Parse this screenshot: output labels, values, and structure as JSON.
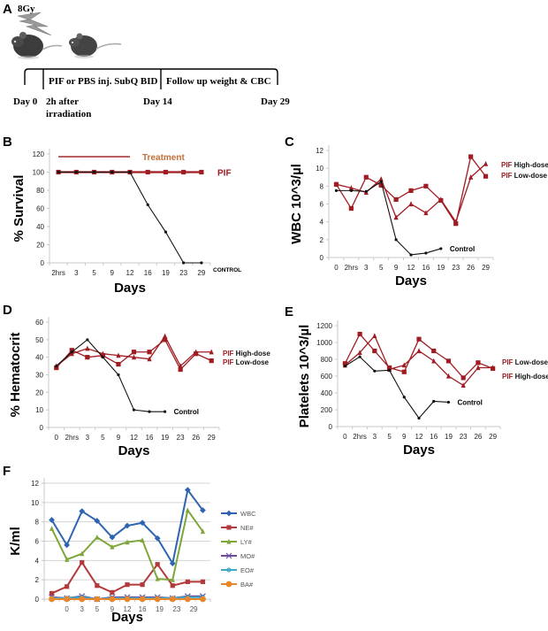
{
  "panels": {
    "A": {
      "letter": "A",
      "dose_label": "8Gy",
      "lightning_icon": "lightning-bolt-icon",
      "mouse_icon": "mouse-icon",
      "segments": [
        "PIF or PBS inj. SubQ BID",
        "Follow up weight & CBC"
      ],
      "day_labels": [
        "Day 0",
        "2h after",
        "irradiation",
        "Day 14",
        "Day 29"
      ]
    }
  },
  "chart_data": [
    {
      "id": "B",
      "letter": "B",
      "type": "line",
      "title": "",
      "xlabel": "Days",
      "ylabel": "% Survival",
      "categories": [
        "2hrs",
        "3",
        "5",
        "9",
        "12",
        "16",
        "19",
        "23",
        "29"
      ],
      "ylim": [
        0,
        120
      ],
      "yticks": [
        0,
        20,
        40,
        60,
        80,
        100,
        120
      ],
      "grid": false,
      "series": [
        {
          "name": "PIF",
          "color": "#a01c22",
          "marker": "square",
          "values": [
            100,
            100,
            100,
            100,
            100,
            100,
            100,
            100,
            100
          ]
        },
        {
          "name": "CONTROL",
          "color": "#111111",
          "marker": "dot",
          "values": [
            100,
            100,
            100,
            100,
            100,
            64,
            34,
            0,
            0
          ]
        }
      ],
      "annotations": [
        {
          "text": "Treatment",
          "color": "#c0703a",
          "kind": "bar-label",
          "range_categories": [
            "2hrs",
            "12"
          ],
          "bar_value": 117
        },
        {
          "text": "PIF",
          "color": "#a01c22"
        },
        {
          "text": "CONTROL",
          "color": "#000000"
        }
      ]
    },
    {
      "id": "C",
      "letter": "C",
      "type": "line",
      "xlabel": "Days",
      "ylabel": "WBC 10^3/µl",
      "categories": [
        "0",
        "2hrs",
        "3",
        "5",
        "9",
        "12",
        "16",
        "19",
        "23",
        "26",
        "29"
      ],
      "ylim": [
        0,
        12
      ],
      "yticks": [
        0,
        2,
        4,
        6,
        8,
        10,
        12
      ],
      "grid": false,
      "series": [
        {
          "name": "PIF High-dose",
          "color": "#a01c22",
          "marker": "triangle",
          "values": [
            8.2,
            7.8,
            7.3,
            8.8,
            4.5,
            6.0,
            5.0,
            6.5,
            4.0,
            9.0,
            10.5
          ]
        },
        {
          "name": "PIF Low-dose",
          "color": "#a01c22",
          "marker": "square",
          "values": [
            8.2,
            5.5,
            9.0,
            8.1,
            6.5,
            7.5,
            8.0,
            6.4,
            3.8,
            11.3,
            9.1
          ]
        },
        {
          "name": "Control",
          "color": "#111111",
          "marker": "dot",
          "values": [
            7.5,
            7.5,
            7.4,
            8.5,
            2.0,
            0.3,
            0.5,
            1.0,
            null,
            null,
            null
          ]
        }
      ],
      "legend": [
        {
          "prefix": "PIF",
          "text": "High-dose"
        },
        {
          "prefix": "PIF",
          "text": "Low-dose"
        }
      ],
      "control_label": "Control"
    },
    {
      "id": "D",
      "letter": "D",
      "type": "line",
      "xlabel": "Days",
      "ylabel": "% Hematocrit",
      "categories": [
        "0",
        "2hrs",
        "3",
        "5",
        "9",
        "12",
        "16",
        "19",
        "23",
        "26",
        "29"
      ],
      "ylim": [
        0,
        60
      ],
      "yticks": [
        0,
        10,
        20,
        30,
        40,
        50,
        60
      ],
      "grid": false,
      "series": [
        {
          "name": "PIF High-dose",
          "color": "#a01c22",
          "marker": "triangle",
          "values": [
            35,
            42,
            45,
            42,
            41,
            40,
            39,
            52,
            35,
            43,
            43
          ]
        },
        {
          "name": "PIF Low-dose",
          "color": "#a01c22",
          "marker": "square",
          "values": [
            34,
            44,
            40,
            41,
            36,
            43,
            43,
            50,
            33,
            42,
            38
          ]
        },
        {
          "name": "Control",
          "color": "#111111",
          "marker": "dot",
          "values": [
            35,
            43,
            50,
            40,
            30,
            10,
            9,
            9,
            null,
            null,
            null
          ]
        }
      ],
      "legend": [
        {
          "prefix": "PIF",
          "text": "High-dose"
        },
        {
          "prefix": "PIF",
          "text": "Low-dose"
        }
      ],
      "control_label": "Control"
    },
    {
      "id": "E",
      "letter": "E",
      "type": "line",
      "xlabel": "Days",
      "ylabel": "Platelets 10^3/µl",
      "categories": [
        "0",
        "2hrs",
        "3",
        "5",
        "9",
        "12",
        "16",
        "19",
        "23",
        "26",
        "29"
      ],
      "ylim": [
        0,
        1200
      ],
      "yticks": [
        0,
        200,
        400,
        600,
        800,
        1000,
        1200
      ],
      "grid": false,
      "series": [
        {
          "name": "PIF Low-dose",
          "color": "#a01c22",
          "marker": "square",
          "values": [
            750,
            1100,
            900,
            700,
            650,
            1040,
            900,
            780,
            580,
            760,
            690
          ]
        },
        {
          "name": "PIF High-dose",
          "color": "#a01c22",
          "marker": "triangle",
          "values": [
            730,
            880,
            1080,
            680,
            730,
            900,
            780,
            600,
            490,
            700,
            700
          ]
        },
        {
          "name": "Control",
          "color": "#111111",
          "marker": "dot",
          "values": [
            720,
            830,
            660,
            670,
            350,
            100,
            300,
            290,
            null,
            null,
            null
          ]
        }
      ],
      "legend": [
        {
          "prefix": "PIF",
          "text": "Low-dose"
        },
        {
          "prefix": "PIF",
          "text": "High-dose"
        }
      ],
      "control_label": "Control"
    },
    {
      "id": "F",
      "letter": "F",
      "type": "line",
      "xlabel": "Days",
      "ylabel": "K/ml",
      "categories": [
        "",
        "0",
        "3",
        "5",
        "9",
        "12",
        "16",
        "",
        "19",
        "23",
        "29"
      ],
      "tick_labels": [
        "0",
        "3",
        "5",
        "9",
        "12",
        "16",
        "19",
        "23",
        "29"
      ],
      "ylim": [
        0,
        12
      ],
      "yticks": [
        0,
        2,
        4,
        6,
        8,
        10,
        12
      ],
      "grid": true,
      "legend_position": "right",
      "series": [
        {
          "name": "WBC",
          "color": "#2e64b0",
          "marker": "diamond",
          "values": [
            8.2,
            5.6,
            9.1,
            8.1,
            6.4,
            7.6,
            7.9,
            6.3,
            3.7,
            11.3,
            9.2
          ]
        },
        {
          "name": "NE#",
          "color": "#b33a3a",
          "marker": "square",
          "values": [
            0.6,
            1.3,
            3.8,
            1.4,
            0.7,
            1.5,
            1.5,
            3.6,
            1.4,
            1.8,
            1.8
          ]
        },
        {
          "name": "LY#",
          "color": "#7ea63a",
          "marker": "triangle",
          "values": [
            7.3,
            4.1,
            4.7,
            6.4,
            5.4,
            5.9,
            6.1,
            2.1,
            2.0,
            9.2,
            7.0
          ]
        },
        {
          "name": "MO#",
          "color": "#6a4c9c",
          "marker": "x",
          "values": [
            0.2,
            0.1,
            0.3,
            0.0,
            0.2,
            0.2,
            0.2,
            0.2,
            0.1,
            0.3,
            0.3
          ]
        },
        {
          "name": "EO#",
          "color": "#3fa7c8",
          "marker": "star",
          "values": [
            0.1,
            0.1,
            0.2,
            0.0,
            0.1,
            0.1,
            0.1,
            0.1,
            0.1,
            0.2,
            0.2
          ]
        },
        {
          "name": "BA#",
          "color": "#e8862a",
          "marker": "circle",
          "values": [
            0.0,
            0.0,
            0.0,
            0.0,
            0.0,
            0.0,
            0.0,
            0.0,
            0.0,
            0.0,
            0.0
          ]
        }
      ]
    }
  ]
}
